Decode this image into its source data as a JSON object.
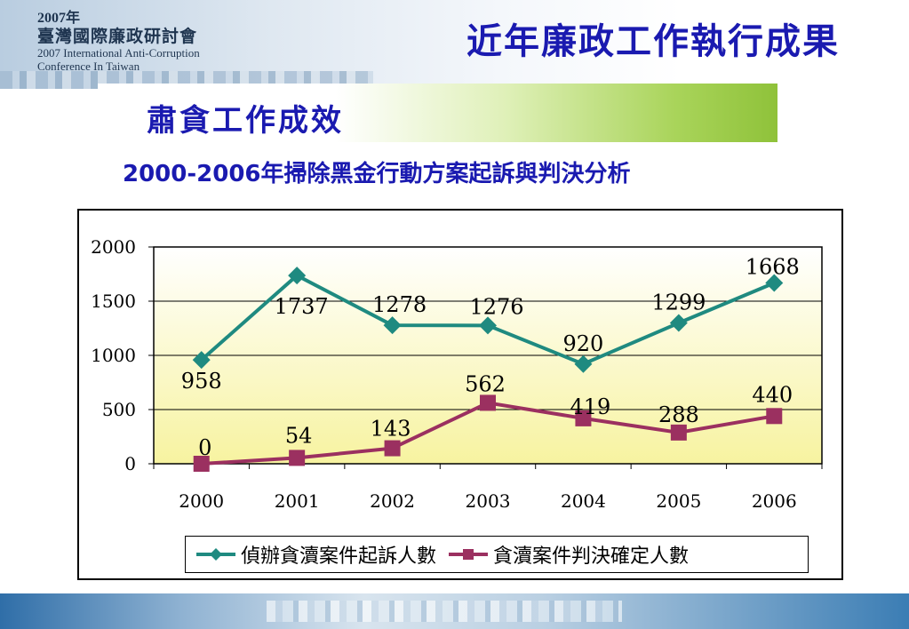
{
  "logo": {
    "year": "2007年",
    "name_zh": "臺灣國際廉政研討會",
    "name_en_1": "2007 International Anti-Corruption",
    "name_en_2": "Conference In Taiwan"
  },
  "page_title": "近年廉政工作執行成果",
  "section_title": "肅貪工作成效",
  "subtitle": "2000-2006年掃除黑金行動方案起訴與判決分析",
  "colors": {
    "title": "#1a1ab0",
    "series_1": "#1f8a80",
    "series_2": "#9b3060",
    "plot_top": "#ffffff",
    "plot_bottom": "#f7f3a0"
  },
  "chart_data": {
    "type": "line",
    "title": "",
    "xlabel": "",
    "ylabel": "",
    "categories": [
      "2000",
      "2001",
      "2002",
      "2003",
      "2004",
      "2005",
      "2006"
    ],
    "ylim": [
      0,
      2000
    ],
    "yticks": [
      "0",
      "500",
      "1000",
      "1500",
      "2000"
    ],
    "grid": true,
    "legend_position": "bottom",
    "series": [
      {
        "name": "偵辦貪瀆案件起訴人數",
        "marker": "diamond",
        "values": [
          958,
          1737,
          1278,
          1276,
          920,
          1299,
          1668
        ],
        "labels": [
          "958",
          "1737",
          "1278",
          "1276",
          "920",
          "1299",
          "1668"
        ]
      },
      {
        "name": "貪瀆案件判決確定人數",
        "marker": "square",
        "values": [
          0,
          54,
          143,
          562,
          419,
          288,
          440
        ],
        "labels": [
          "0",
          "54",
          "143",
          "562",
          "419",
          "288",
          "440"
        ]
      }
    ]
  }
}
